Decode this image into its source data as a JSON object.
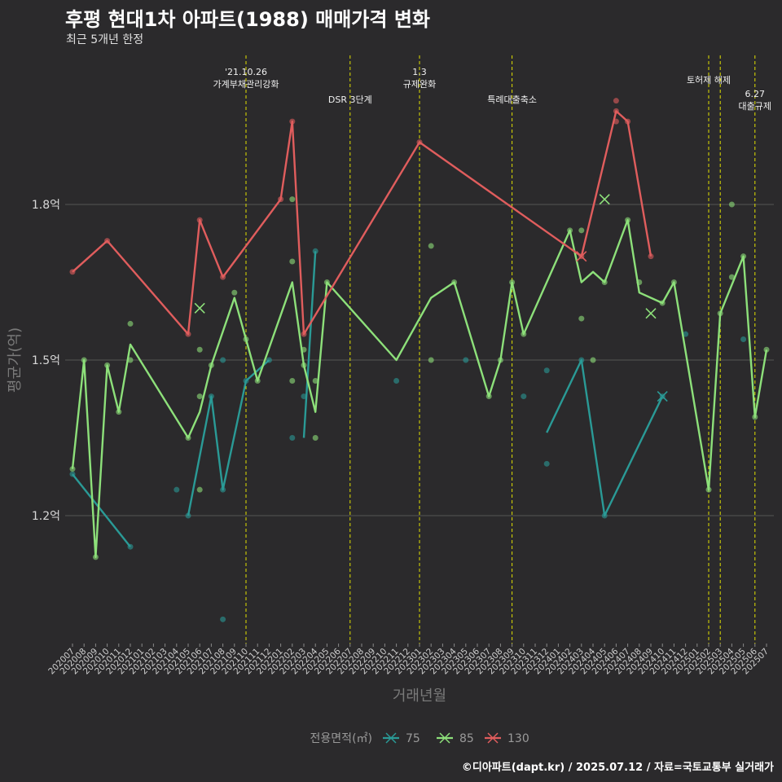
{
  "title": "후평 현대1차 아파트(1988) 매매가격 변화",
  "subtitle": "최근 5개년 한정",
  "caption": "©디아파트(dapt.kr) / 2025.07.12 / 자료=국토교통부 실거래가",
  "colors": {
    "background": "#2b2a2c",
    "grid": "#555555",
    "event_line": "#e0e000",
    "s75": "#2a9a96",
    "s85": "#8de07a",
    "s130": "#e05d5d"
  },
  "chart_data": {
    "type": "line",
    "xlabel": "거래년월",
    "ylabel": "평균가(억)",
    "ylim": [
      0.95,
      2.25
    ],
    "yticks": [
      1.2,
      1.5,
      1.8
    ],
    "ytick_labels": [
      "1.2억",
      "1.5억",
      "1.8억"
    ],
    "categories": [
      "202007",
      "202008",
      "202009",
      "202010",
      "202011",
      "202012",
      "202101",
      "202102",
      "202103",
      "202104",
      "202105",
      "202106",
      "202107",
      "202108",
      "202109",
      "202110",
      "202111",
      "202112",
      "202201",
      "202202",
      "202203",
      "202204",
      "202205",
      "202206",
      "202207",
      "202208",
      "202209",
      "202210",
      "202211",
      "202212",
      "202301",
      "202302",
      "202303",
      "202304",
      "202305",
      "202306",
      "202307",
      "202308",
      "202309",
      "202310",
      "202311",
      "202312",
      "202401",
      "202402",
      "202403",
      "202404",
      "202405",
      "202406",
      "202407",
      "202408",
      "202409",
      "202410",
      "202411",
      "202412",
      "202501",
      "202502",
      "202503",
      "202504",
      "202505",
      "202506",
      "202507"
    ],
    "legend_title": "전용면적(㎡)",
    "events": [
      {
        "x": "202110",
        "label": "'21.10.26\n가계부채관리강화",
        "row": 0
      },
      {
        "x": "202207",
        "label": "DSR 3단계",
        "row": 1
      },
      {
        "x": "202301",
        "label": "1.3\n규제완화",
        "row": 0
      },
      {
        "x": "202309",
        "label": "특례대출축소",
        "row": 1
      },
      {
        "x": "202502",
        "label": "토허제 해제",
        "row": 0
      },
      {
        "x": "202503",
        "label": "",
        "row": 0
      },
      {
        "x": "202506",
        "label": "6.27\n대출규제",
        "row": 2
      }
    ],
    "series": [
      {
        "name": "75",
        "color": "#2a9a96",
        "line": [
          [
            "202007",
            1.28
          ],
          [
            "202012",
            1.14
          ],
          null,
          [
            "202105",
            1.2
          ],
          [
            "202107",
            1.43
          ],
          [
            "202108",
            1.25
          ],
          [
            "202110",
            1.46
          ],
          [
            "202112",
            1.5
          ],
          null,
          [
            "202203",
            1.35
          ],
          [
            "202204",
            1.71
          ],
          null,
          [
            "202312",
            1.36
          ],
          [
            "202403",
            1.5
          ],
          [
            "202405",
            1.2
          ],
          [
            "202410",
            1.43
          ]
        ],
        "points": [
          [
            "202007",
            1.28
          ],
          [
            "202012",
            1.14
          ],
          [
            "202104",
            1.25
          ],
          [
            "202105",
            1.2
          ],
          [
            "202107",
            1.43
          ],
          [
            "202108",
            1.25
          ],
          [
            "202108",
            1.5
          ],
          [
            "202110",
            1.46
          ],
          [
            "202112",
            1.5
          ],
          [
            "202202",
            1.35
          ],
          [
            "202203",
            1.43
          ],
          [
            "202204",
            1.71
          ],
          [
            "202211",
            1.46
          ],
          [
            "202305",
            1.5
          ],
          [
            "202310",
            1.43
          ],
          [
            "202312",
            1.3
          ],
          [
            "202312",
            1.48
          ],
          [
            "202403",
            1.5
          ],
          [
            "202405",
            1.2
          ],
          [
            "202410",
            1.43
          ],
          [
            "202412",
            1.55
          ],
          [
            "202505",
            1.54
          ],
          [
            "202108",
            1.0
          ]
        ],
        "crosses": [
          [
            "202410",
            1.43
          ]
        ]
      },
      {
        "name": "85",
        "color": "#8de07a",
        "line": [
          [
            "202007",
            1.29
          ],
          [
            "202008",
            1.5
          ],
          [
            "202009",
            1.12
          ],
          [
            "202010",
            1.49
          ],
          [
            "202011",
            1.4
          ],
          [
            "202012",
            1.53
          ],
          [
            "202105",
            1.35
          ],
          [
            "202106",
            1.4
          ],
          [
            "202107",
            1.49
          ],
          [
            "202109",
            1.62
          ],
          [
            "202110",
            1.54
          ],
          [
            "202111",
            1.46
          ],
          [
            "202202",
            1.65
          ],
          [
            "202203",
            1.49
          ],
          [
            "202204",
            1.4
          ],
          [
            "202205",
            1.65
          ],
          [
            "202211",
            1.5
          ],
          [
            "202302",
            1.62
          ],
          [
            "202304",
            1.65
          ],
          [
            "202307",
            1.43
          ],
          [
            "202308",
            1.5
          ],
          [
            "202309",
            1.65
          ],
          [
            "202310",
            1.55
          ],
          [
            "202402",
            1.75
          ],
          [
            "202403",
            1.65
          ],
          [
            "202404",
            1.67
          ],
          [
            "202405",
            1.65
          ],
          [
            "202407",
            1.77
          ],
          [
            "202408",
            1.63
          ],
          [
            "202410",
            1.61
          ],
          [
            "202411",
            1.65
          ],
          [
            "202502",
            1.25
          ],
          [
            "202503",
            1.59
          ],
          [
            "202505",
            1.7
          ],
          [
            "202506",
            1.39
          ],
          [
            "202507",
            1.52
          ]
        ],
        "points": [
          [
            "202007",
            1.29
          ],
          [
            "202008",
            1.5
          ],
          [
            "202009",
            1.12
          ],
          [
            "202010",
            1.49
          ],
          [
            "202011",
            1.4
          ],
          [
            "202012",
            1.5
          ],
          [
            "202012",
            1.57
          ],
          [
            "202105",
            1.35
          ],
          [
            "202106",
            1.25
          ],
          [
            "202106",
            1.43
          ],
          [
            "202106",
            1.52
          ],
          [
            "202107",
            1.49
          ],
          [
            "202109",
            1.63
          ],
          [
            "202110",
            1.54
          ],
          [
            "202111",
            1.46
          ],
          [
            "202202",
            1.46
          ],
          [
            "202202",
            1.69
          ],
          [
            "202202",
            1.81
          ],
          [
            "202203",
            1.49
          ],
          [
            "202203",
            1.52
          ],
          [
            "202204",
            1.35
          ],
          [
            "202204",
            1.46
          ],
          [
            "202205",
            1.65
          ],
          [
            "202302",
            1.5
          ],
          [
            "202302",
            1.72
          ],
          [
            "202304",
            1.65
          ],
          [
            "202307",
            1.43
          ],
          [
            "202308",
            1.5
          ],
          [
            "202309",
            1.65
          ],
          [
            "202310",
            1.55
          ],
          [
            "202402",
            1.75
          ],
          [
            "202403",
            1.58
          ],
          [
            "202403",
            1.75
          ],
          [
            "202404",
            1.5
          ],
          [
            "202405",
            1.65
          ],
          [
            "202407",
            1.77
          ],
          [
            "202408",
            1.65
          ],
          [
            "202410",
            1.61
          ],
          [
            "202411",
            1.65
          ],
          [
            "202502",
            1.25
          ],
          [
            "202503",
            1.59
          ],
          [
            "202504",
            1.66
          ],
          [
            "202504",
            1.8
          ],
          [
            "202505",
            1.7
          ],
          [
            "202506",
            1.39
          ],
          [
            "202507",
            1.52
          ]
        ],
        "crosses": [
          [
            "202106",
            1.6
          ],
          [
            "202405",
            1.81
          ],
          [
            "202409",
            1.59
          ]
        ]
      },
      {
        "name": "130",
        "color": "#e05d5d",
        "line": [
          [
            "202007",
            1.67
          ],
          [
            "202010",
            1.73
          ],
          [
            "202105",
            1.55
          ],
          [
            "202106",
            1.77
          ],
          [
            "202108",
            1.66
          ],
          [
            "202201",
            1.81
          ],
          [
            "202202",
            1.96
          ],
          [
            "202203",
            1.55
          ],
          [
            "202301",
            1.92
          ],
          [
            "202403",
            1.7
          ],
          [
            "202406",
            1.98
          ],
          [
            "202407",
            1.96
          ],
          [
            "202409",
            1.7
          ]
        ],
        "points": [
          [
            "202007",
            1.67
          ],
          [
            "202010",
            1.73
          ],
          [
            "202105",
            1.55
          ],
          [
            "202106",
            1.77
          ],
          [
            "202108",
            1.66
          ],
          [
            "202201",
            1.81
          ],
          [
            "202202",
            1.96
          ],
          [
            "202203",
            1.55
          ],
          [
            "202301",
            1.92
          ],
          [
            "202403",
            1.7
          ],
          [
            "202406",
            2.0
          ],
          [
            "202406",
            1.96
          ],
          [
            "202406",
            1.98
          ],
          [
            "202407",
            1.96
          ],
          [
            "202409",
            1.7
          ]
        ],
        "crosses": [
          [
            "202403",
            1.7
          ]
        ]
      }
    ]
  }
}
